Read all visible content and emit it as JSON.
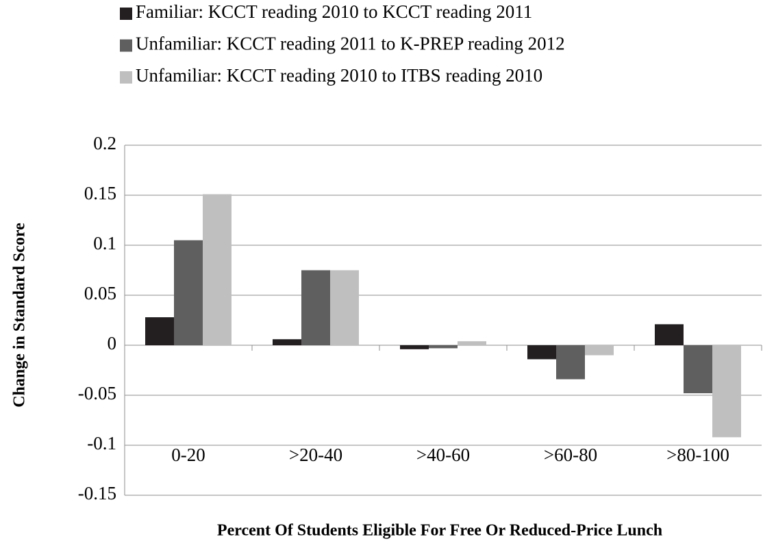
{
  "chart_data": {
    "type": "bar",
    "x_label": "Percent Of Students Eligible For Free Or Reduced-Price Lunch",
    "y_label": "Change in Standard Score",
    "categories": [
      "0-20",
      ">20-40",
      ">40-60",
      ">60-80",
      ">80-100"
    ],
    "series": [
      {
        "name": "Familiar: KCCT  reading 2010 to KCCT reading 2011",
        "color": "#231f20",
        "values": [
          0.028,
          0.006,
          -0.004,
          -0.014,
          0.021
        ]
      },
      {
        "name": "Unfamiliar: KCCT  reading 2011 to K-PREP reading 2012",
        "color": "#5f5f5f",
        "values": [
          0.105,
          0.075,
          -0.003,
          -0.034,
          -0.048
        ]
      },
      {
        "name": "Unfamiliar: KCCT  reading 2010 to ITBS reading 2010",
        "color": "#bfbfbf",
        "values": [
          0.151,
          0.075,
          0.004,
          -0.01,
          -0.092
        ]
      }
    ],
    "ylim": [
      -0.15,
      0.2
    ],
    "yticks": [
      0.2,
      0.15,
      0.1,
      0.05,
      0,
      -0.05,
      -0.1,
      -0.15
    ],
    "grid": true
  }
}
